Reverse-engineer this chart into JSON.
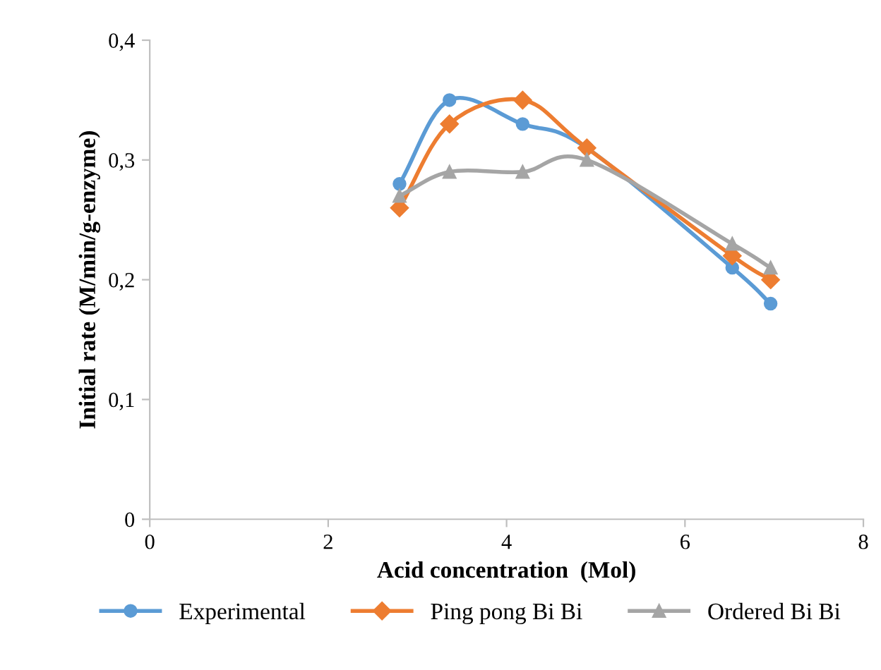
{
  "chart_data": {
    "type": "line",
    "xlabel": "Acid concentration  (Mol)",
    "ylabel": "Initial rate (M/min/g-enzyme)",
    "x": [
      2.8,
      3.36,
      4.18,
      4.9,
      6.53,
      6.96
    ],
    "series": [
      {
        "name": "Experimental",
        "color": "#5b9bd5",
        "values": [
          0.28,
          0.35,
          0.33,
          0.31,
          0.21,
          0.18
        ],
        "marker": "circle"
      },
      {
        "name": "Ping pong Bi Bi",
        "color": "#ed7d31",
        "values": [
          0.26,
          0.33,
          0.35,
          0.31,
          0.22,
          0.2
        ],
        "marker": "diamond"
      },
      {
        "name": "Ordered Bi Bi",
        "color": "#a5a5a5",
        "values": [
          0.27,
          0.29,
          0.29,
          0.3,
          0.23,
          0.21
        ],
        "marker": "triangle"
      }
    ],
    "xlim": [
      0,
      8
    ],
    "xticks": [
      0,
      2,
      4,
      6,
      8
    ],
    "ylim": [
      0,
      0.4
    ],
    "yticks": [
      0,
      {
        "value": 0.1,
        "label": "0,1"
      },
      {
        "value": 0.2,
        "label": "0,2"
      },
      {
        "value": 0.3,
        "label": "0,3"
      },
      {
        "value": 0.4,
        "label": "0,4"
      }
    ],
    "grid": false,
    "legend": "bottom",
    "line_style": "solid"
  }
}
